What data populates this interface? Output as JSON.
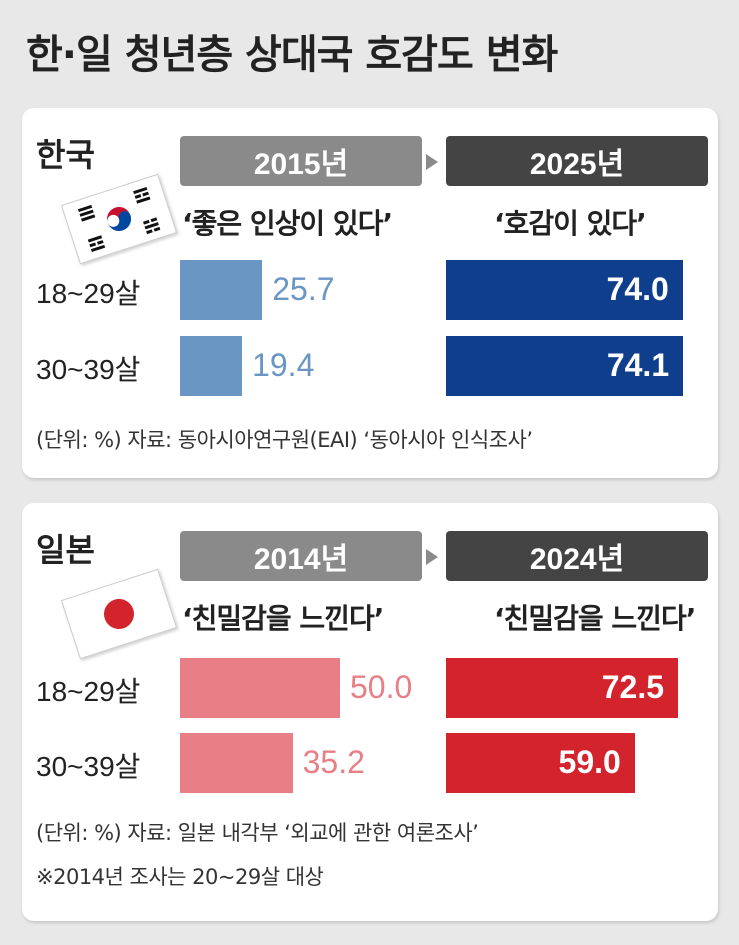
{
  "title": "한·일 청년층 상대국 호감도 변화",
  "korea": {
    "country": "한국",
    "flag_icon": "korea-flag-icon",
    "year_a": "2015년",
    "year_b": "2025년",
    "question_a": "‘좋은 인상이 있다’",
    "question_b": "‘호감이 있다’",
    "note": "(단위: %) 자료: 동아시아연구원(EAI) ‘동아시아 인식조사’",
    "colors": {
      "old": "#6a96c4",
      "new": "#0f3f8c"
    }
  },
  "japan": {
    "country": "일본",
    "flag_icon": "japan-flag-icon",
    "year_a": "2014년",
    "year_b": "2024년",
    "question_a": "‘친밀감을 느낀다’",
    "question_b": "‘친밀감을 느낀다’",
    "note": "(단위: %) 자료: 일본 내각부 ‘외교에 관한 여론조사’",
    "footnote": "※2014년 조사는 20~29살 대상",
    "colors": {
      "old": "#e87f86",
      "new": "#d3232d"
    }
  },
  "chart_data": [
    {
      "type": "bar",
      "categories": [
        "18~29살",
        "30~39살"
      ],
      "series": [
        {
          "name": "2015년",
          "values": [
            25.7,
            19.4
          ]
        },
        {
          "name": "2025년",
          "values": [
            74.0,
            74.1
          ]
        }
      ],
      "value_labels": {
        "2015년": [
          "25.7",
          "19.4"
        ],
        "2025년": [
          "74.0",
          "74.1"
        ]
      }
    },
    {
      "type": "bar",
      "categories": [
        "18~29살",
        "30~39살"
      ],
      "series": [
        {
          "name": "2014년",
          "values": [
            50.0,
            35.2
          ]
        },
        {
          "name": "2024년",
          "values": [
            72.5,
            59.0
          ]
        }
      ],
      "value_labels": {
        "2014년": [
          "50.0",
          "35.2"
        ],
        "2024년": [
          "72.5",
          "59.0"
        ]
      }
    }
  ]
}
